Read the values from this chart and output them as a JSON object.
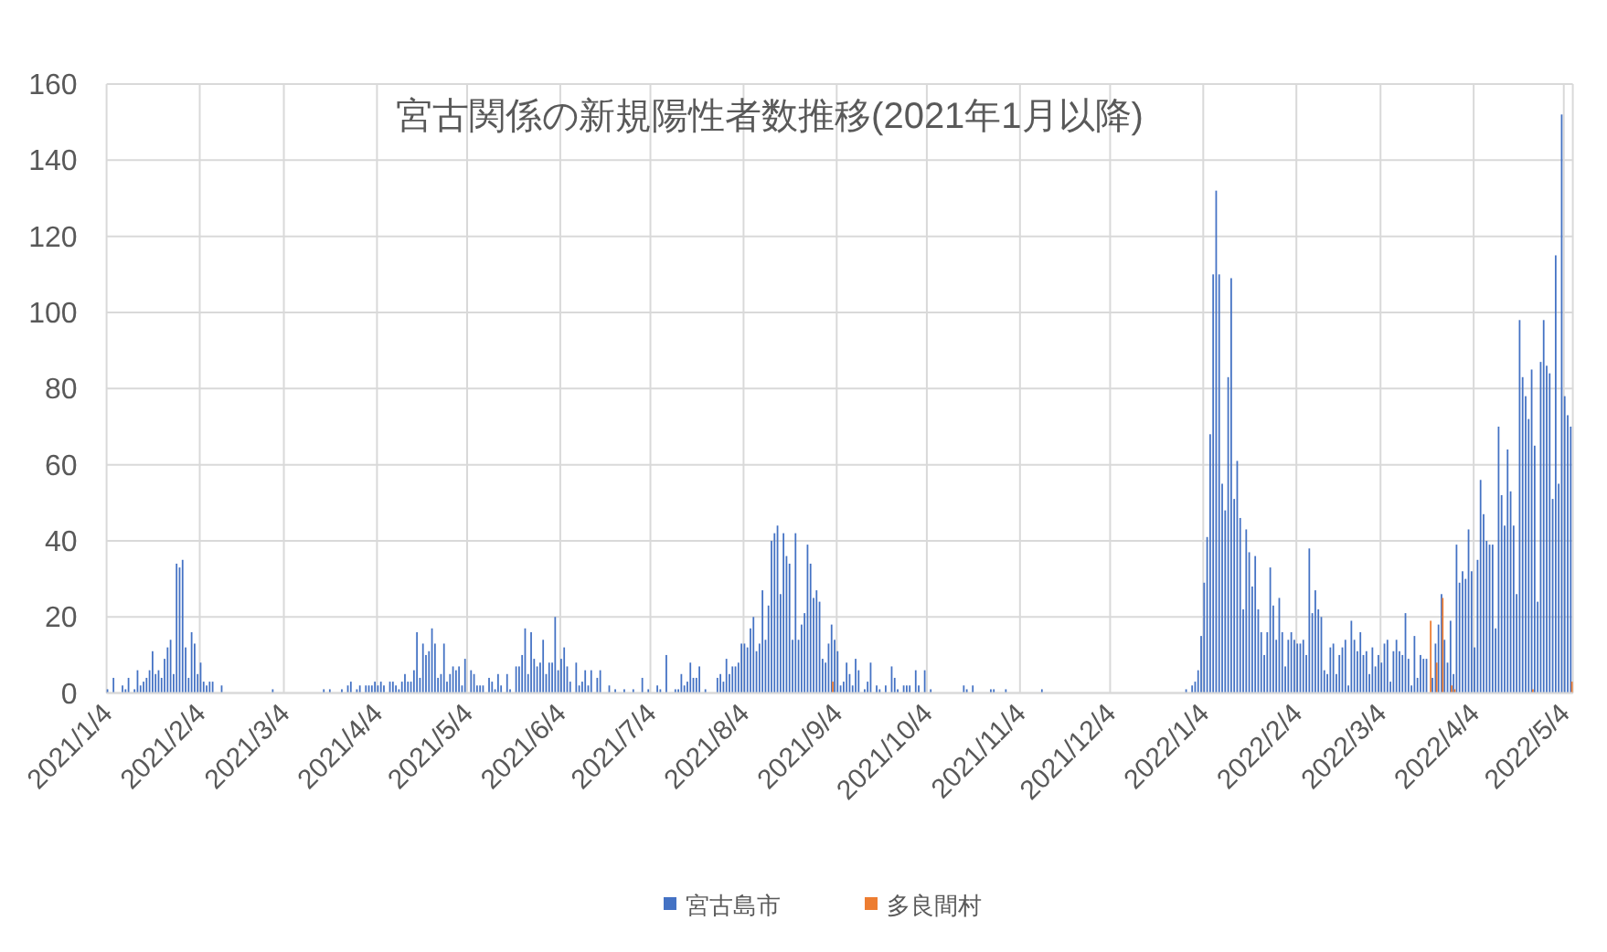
{
  "chart_data": {
    "type": "bar",
    "title": "宮古関係の新規陽性者数推移(2021年1月以降)",
    "series": [
      {
        "name": "宮古島市",
        "color": "#4472c4",
        "x": [
          "2021-01-04",
          "2021-01-06",
          "2021-01-09",
          "2021-01-10",
          "2021-01-11",
          "2021-01-13",
          "2021-01-14",
          "2021-01-15",
          "2021-01-16",
          "2021-01-17",
          "2021-01-18",
          "2021-01-19",
          "2021-01-20",
          "2021-01-21",
          "2021-01-22",
          "2021-01-23",
          "2021-01-24",
          "2021-01-25",
          "2021-01-26",
          "2021-01-27",
          "2021-01-28",
          "2021-01-29",
          "2021-01-30",
          "2021-01-31",
          "2021-02-01",
          "2021-02-02",
          "2021-02-03",
          "2021-02-04",
          "2021-02-05",
          "2021-02-06",
          "2021-02-07",
          "2021-02-08",
          "2021-02-11",
          "2021-02-28",
          "2021-03-17",
          "2021-03-19",
          "2021-03-23",
          "2021-03-25",
          "2021-03-26",
          "2021-03-28",
          "2021-03-29",
          "2021-03-31",
          "2021-04-01",
          "2021-04-02",
          "2021-04-03",
          "2021-04-04",
          "2021-04-05",
          "2021-04-06",
          "2021-04-08",
          "2021-04-09",
          "2021-04-10",
          "2021-04-11",
          "2021-04-12",
          "2021-04-13",
          "2021-04-14",
          "2021-04-15",
          "2021-04-16",
          "2021-04-17",
          "2021-04-18",
          "2021-04-19",
          "2021-04-20",
          "2021-04-21",
          "2021-04-22",
          "2021-04-23",
          "2021-04-24",
          "2021-04-25",
          "2021-04-26",
          "2021-04-27",
          "2021-04-28",
          "2021-04-29",
          "2021-04-30",
          "2021-05-01",
          "2021-05-02",
          "2021-05-03",
          "2021-05-05",
          "2021-05-06",
          "2021-05-07",
          "2021-05-08",
          "2021-05-09",
          "2021-05-11",
          "2021-05-12",
          "2021-05-13",
          "2021-05-14",
          "2021-05-15",
          "2021-05-17",
          "2021-05-18",
          "2021-05-20",
          "2021-05-21",
          "2021-05-22",
          "2021-05-23",
          "2021-05-24",
          "2021-05-25",
          "2021-05-26",
          "2021-05-27",
          "2021-05-28",
          "2021-05-29",
          "2021-05-30",
          "2021-05-31",
          "2021-06-01",
          "2021-06-02",
          "2021-06-03",
          "2021-06-04",
          "2021-06-05",
          "2021-06-06",
          "2021-06-07",
          "2021-06-09",
          "2021-06-10",
          "2021-06-11",
          "2021-06-12",
          "2021-06-13",
          "2021-06-14",
          "2021-06-16",
          "2021-06-17",
          "2021-06-20",
          "2021-06-22",
          "2021-06-25",
          "2021-06-28",
          "2021-07-01",
          "2021-07-03",
          "2021-07-06",
          "2021-07-07",
          "2021-07-09",
          "2021-07-12",
          "2021-07-13",
          "2021-07-14",
          "2021-07-15",
          "2021-07-16",
          "2021-07-17",
          "2021-07-18",
          "2021-07-19",
          "2021-07-20",
          "2021-07-22",
          "2021-07-26",
          "2021-07-27",
          "2021-07-28",
          "2021-07-29",
          "2021-07-30",
          "2021-07-31",
          "2021-08-01",
          "2021-08-02",
          "2021-08-03",
          "2021-08-04",
          "2021-08-05",
          "2021-08-06",
          "2021-08-07",
          "2021-08-08",
          "2021-08-09",
          "2021-08-10",
          "2021-08-11",
          "2021-08-12",
          "2021-08-13",
          "2021-08-14",
          "2021-08-15",
          "2021-08-16",
          "2021-08-17",
          "2021-08-18",
          "2021-08-19",
          "2021-08-20",
          "2021-08-21",
          "2021-08-22",
          "2021-08-23",
          "2021-08-24",
          "2021-08-25",
          "2021-08-26",
          "2021-08-27",
          "2021-08-28",
          "2021-08-29",
          "2021-08-30",
          "2021-08-31",
          "2021-09-01",
          "2021-09-02",
          "2021-09-03",
          "2021-09-04",
          "2021-09-05",
          "2021-09-06",
          "2021-09-07",
          "2021-09-08",
          "2021-09-09",
          "2021-09-10",
          "2021-09-11",
          "2021-09-13",
          "2021-09-14",
          "2021-09-15",
          "2021-09-17",
          "2021-09-18",
          "2021-09-20",
          "2021-09-22",
          "2021-09-23",
          "2021-09-24",
          "2021-09-26",
          "2021-09-27",
          "2021-09-28",
          "2021-09-30",
          "2021-10-01",
          "2021-10-03",
          "2021-10-05",
          "2021-10-16",
          "2021-10-17",
          "2021-10-19",
          "2021-10-25",
          "2021-10-26",
          "2021-10-30",
          "2021-11-11",
          "2021-12-29",
          "2021-12-31",
          "2022-01-01",
          "2022-01-02",
          "2022-01-03",
          "2022-01-04",
          "2022-01-05",
          "2022-01-06",
          "2022-01-07",
          "2022-01-08",
          "2022-01-09",
          "2022-01-10",
          "2022-01-11",
          "2022-01-12",
          "2022-01-13",
          "2022-01-14",
          "2022-01-15",
          "2022-01-16",
          "2022-01-17",
          "2022-01-18",
          "2022-01-19",
          "2022-01-20",
          "2022-01-21",
          "2022-01-22",
          "2022-01-23",
          "2022-01-24",
          "2022-01-25",
          "2022-01-26",
          "2022-01-27",
          "2022-01-28",
          "2022-01-29",
          "2022-01-30",
          "2022-01-31",
          "2022-02-01",
          "2022-02-02",
          "2022-02-03",
          "2022-02-04",
          "2022-02-05",
          "2022-02-06",
          "2022-02-07",
          "2022-02-08",
          "2022-02-09",
          "2022-02-10",
          "2022-02-11",
          "2022-02-12",
          "2022-02-13",
          "2022-02-14",
          "2022-02-15",
          "2022-02-16",
          "2022-02-17",
          "2022-02-18",
          "2022-02-19",
          "2022-02-20",
          "2022-02-21",
          "2022-02-22",
          "2022-02-23",
          "2022-02-24",
          "2022-02-25",
          "2022-02-26",
          "2022-02-27",
          "2022-02-28",
          "2022-03-01",
          "2022-03-02",
          "2022-03-03",
          "2022-03-04",
          "2022-03-05",
          "2022-03-06",
          "2022-03-07",
          "2022-03-08",
          "2022-03-09",
          "2022-03-10",
          "2022-03-11",
          "2022-03-12",
          "2022-03-13",
          "2022-03-14",
          "2022-03-15",
          "2022-03-16",
          "2022-03-17",
          "2022-03-18",
          "2022-03-19",
          "2022-03-21",
          "2022-03-22",
          "2022-03-23",
          "2022-03-24",
          "2022-03-25",
          "2022-03-26",
          "2022-03-27",
          "2022-03-28",
          "2022-03-29",
          "2022-03-30",
          "2022-03-31",
          "2022-04-01",
          "2022-04-02",
          "2022-04-03",
          "2022-04-04",
          "2022-04-05",
          "2022-04-06",
          "2022-04-07",
          "2022-04-08",
          "2022-04-09",
          "2022-04-10",
          "2022-04-11",
          "2022-04-12",
          "2022-04-13",
          "2022-04-14",
          "2022-04-15",
          "2022-04-16",
          "2022-04-17",
          "2022-04-18",
          "2022-04-19",
          "2022-04-20",
          "2022-04-21",
          "2022-04-22",
          "2022-04-23",
          "2022-04-24",
          "2022-04-25",
          "2022-04-26",
          "2022-04-27",
          "2022-04-28",
          "2022-04-29",
          "2022-04-30",
          "2022-05-01",
          "2022-05-02",
          "2022-05-03",
          "2022-05-04",
          "2022-05-05",
          "2022-05-06"
        ],
        "values": [
          1,
          4,
          2,
          1,
          4,
          1,
          6,
          2,
          3,
          4,
          6,
          11,
          5,
          6,
          4,
          9,
          12,
          14,
          5,
          34,
          33,
          35,
          12,
          4,
          16,
          13,
          5,
          8,
          3,
          2,
          3,
          3,
          2,
          1,
          1,
          1,
          1,
          2,
          3,
          1,
          2,
          2,
          2,
          2,
          3,
          2,
          3,
          2,
          3,
          3,
          2,
          1,
          3,
          5,
          3,
          3,
          6,
          16,
          4,
          13,
          10,
          11,
          17,
          13,
          4,
          5,
          13,
          3,
          5,
          7,
          6,
          7,
          2,
          9,
          6,
          5,
          2,
          2,
          2,
          4,
          3,
          1,
          5,
          2,
          5,
          1,
          7,
          7,
          10,
          17,
          5,
          16,
          9,
          7,
          8,
          14,
          5,
          8,
          8,
          20,
          6,
          9,
          12,
          7,
          3,
          8,
          2,
          3,
          6,
          2,
          6,
          4,
          6,
          2,
          1,
          1,
          1,
          4,
          1,
          2,
          1,
          10,
          1,
          1,
          5,
          2,
          3,
          8,
          4,
          4,
          7,
          1,
          4,
          5,
          3,
          9,
          5,
          7,
          7,
          8,
          13,
          13,
          12,
          17,
          20,
          11,
          13,
          27,
          14,
          23,
          40,
          42,
          44,
          26,
          42,
          36,
          34,
          14,
          42,
          14,
          18,
          21,
          39,
          34,
          25,
          27,
          24,
          9,
          8,
          13,
          18,
          14,
          11,
          2,
          3,
          8,
          5,
          2,
          9,
          6,
          1,
          3,
          8,
          2,
          1,
          2,
          7,
          4,
          1,
          2,
          2,
          2,
          6,
          2,
          6,
          1,
          2,
          1,
          2,
          1,
          1,
          1,
          1,
          1,
          2,
          3,
          6,
          15,
          29,
          41,
          68,
          110,
          132,
          110,
          55,
          48,
          83,
          109,
          51,
          61,
          46,
          22,
          43,
          37,
          28,
          36,
          22,
          16,
          10,
          16,
          33,
          23,
          14,
          25,
          16,
          7,
          14,
          16,
          14,
          13,
          13,
          14,
          10,
          38,
          21,
          27,
          22,
          20,
          6,
          5,
          12,
          13,
          5,
          10,
          12,
          14,
          2,
          19,
          14,
          11,
          16,
          10,
          11,
          5,
          12,
          7,
          10,
          8,
          13,
          14,
          3,
          11,
          14,
          11,
          10,
          21,
          9,
          2,
          15,
          4,
          10,
          9,
          9,
          4,
          13,
          18,
          26,
          14,
          8,
          19,
          5,
          39,
          29,
          32,
          30,
          43,
          32,
          12,
          35,
          56,
          47,
          40,
          39,
          39,
          17,
          70,
          52,
          44,
          64,
          53,
          44,
          26,
          98,
          83,
          78,
          72,
          85,
          65,
          24,
          87,
          98,
          86,
          84,
          51,
          115,
          55,
          152,
          78,
          73,
          70
        ]
      },
      {
        "name": "多良間村",
        "color": "#ed7d31",
        "x": [
          "2021-09-02",
          "2022-03-20",
          "2022-03-22",
          "2022-03-24",
          "2022-03-27",
          "2022-03-28",
          "2022-04-23",
          "2022-05-06"
        ],
        "values": [
          3,
          19,
          8,
          25,
          2,
          1,
          1,
          3
        ]
      }
    ],
    "xlim": [
      "2021-01-04",
      "2022-05-07"
    ],
    "xticks": [
      {
        "value": "2021-01-04",
        "label": "2021/1/4"
      },
      {
        "value": "2021-02-04",
        "label": "2021/2/4"
      },
      {
        "value": "2021-03-04",
        "label": "2021/3/4"
      },
      {
        "value": "2021-04-04",
        "label": "2021/4/4"
      },
      {
        "value": "2021-05-04",
        "label": "2021/5/4"
      },
      {
        "value": "2021-06-04",
        "label": "2021/6/4"
      },
      {
        "value": "2021-07-04",
        "label": "2021/7/4"
      },
      {
        "value": "2021-08-04",
        "label": "2021/8/4"
      },
      {
        "value": "2021-09-04",
        "label": "2021/9/4"
      },
      {
        "value": "2021-10-04",
        "label": "2021/10/4"
      },
      {
        "value": "2021-11-04",
        "label": "2021/11/4"
      },
      {
        "value": "2021-12-04",
        "label": "2021/12/4"
      },
      {
        "value": "2022-01-04",
        "label": "2022/1/4"
      },
      {
        "value": "2022-02-04",
        "label": "2022/2/4"
      },
      {
        "value": "2022-03-04",
        "label": "2022/3/4"
      },
      {
        "value": "2022-04-04",
        "label": "2022/4/4"
      },
      {
        "value": "2022-05-04",
        "label": "2022/5/4"
      }
    ],
    "ylim": [
      0,
      160
    ],
    "yticks": [
      0,
      20,
      40,
      60,
      80,
      100,
      120,
      140,
      160
    ],
    "grid": true,
    "legend": "bottom"
  }
}
